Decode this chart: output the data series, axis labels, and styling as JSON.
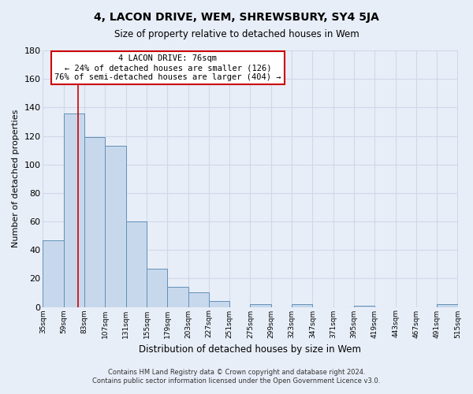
{
  "title": "4, LACON DRIVE, WEM, SHREWSBURY, SY4 5JA",
  "subtitle": "Size of property relative to detached houses in Wem",
  "xlabel": "Distribution of detached houses by size in Wem",
  "ylabel": "Number of detached properties",
  "footer_line1": "Contains HM Land Registry data © Crown copyright and database right 2024.",
  "footer_line2": "Contains public sector information licensed under the Open Government Licence v3.0.",
  "bar_edges": [
    35,
    59,
    83,
    107,
    131,
    155,
    179,
    203,
    227,
    251,
    275,
    299,
    323,
    347,
    371,
    395,
    419,
    443,
    467,
    491,
    515
  ],
  "bar_heights": [
    47,
    136,
    119,
    113,
    60,
    27,
    14,
    10,
    4,
    0,
    2,
    0,
    2,
    0,
    0,
    1,
    0,
    0,
    0,
    2
  ],
  "bar_color": "#c8d8ec",
  "bar_edge_color": "#6090b8",
  "property_line_x": 76,
  "property_line_color": "#cc0000",
  "annotation_title": "4 LACON DRIVE: 76sqm",
  "annotation_line1": "← 24% of detached houses are smaller (126)",
  "annotation_line2": "76% of semi-detached houses are larger (404) →",
  "annotation_box_color": "white",
  "annotation_box_edge": "#cc0000",
  "ylim": [
    0,
    180
  ],
  "xlim": [
    35,
    515
  ],
  "tick_labels": [
    "35sqm",
    "59sqm",
    "83sqm",
    "107sqm",
    "131sqm",
    "155sqm",
    "179sqm",
    "203sqm",
    "227sqm",
    "251sqm",
    "275sqm",
    "299sqm",
    "323sqm",
    "347sqm",
    "371sqm",
    "395sqm",
    "419sqm",
    "443sqm",
    "467sqm",
    "491sqm",
    "515sqm"
  ],
  "bg_color": "#e8eef8",
  "grid_color": "#d0d8e8",
  "yticks": [
    0,
    20,
    40,
    60,
    80,
    100,
    120,
    140,
    160,
    180
  ]
}
